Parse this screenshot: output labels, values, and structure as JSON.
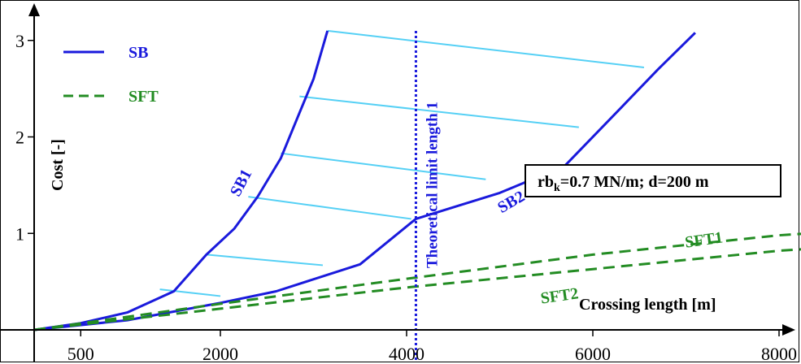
{
  "chart_data": {
    "type": "line",
    "xlabel": "Crossing length [m]",
    "ylabel": "Cost [-]",
    "xlim": [
      0,
      8000
    ],
    "ylim": [
      0,
      3.2
    ],
    "x_ticks": [
      "500",
      "2000",
      "4000",
      "6000",
      "8000"
    ],
    "x_tick_values": [
      500,
      2000,
      4000,
      6000,
      8000
    ],
    "y_ticks": [
      "1",
      "2",
      "3"
    ],
    "y_tick_values": [
      1,
      2,
      3
    ],
    "grid": false,
    "legend": {
      "placement": "top-left",
      "entries": [
        {
          "label": "SB",
          "style": "solid",
          "color": "#1a1adc"
        },
        {
          "label": "SFT",
          "style": "dashed",
          "color": "#238c23"
        }
      ]
    },
    "annotation_box": {
      "text_prefix": "rb",
      "text_sub": "k",
      "text_suffix": "=0.7 MN/m; d=200 m"
    },
    "vertical_line": {
      "x": 4100,
      "label": "Theoretical limit length 1",
      "color": "#1a1adc"
    },
    "series": [
      {
        "name": "SB1",
        "style": "solid",
        "color": "#1a1adc",
        "points": [
          [
            0,
            0
          ],
          [
            500,
            0.07
          ],
          [
            1000,
            0.18
          ],
          [
            1500,
            0.4
          ],
          [
            1850,
            0.78
          ],
          [
            2150,
            1.05
          ],
          [
            2400,
            1.38
          ],
          [
            2650,
            1.78
          ],
          [
            2850,
            2.25
          ],
          [
            3000,
            2.6
          ],
          [
            3150,
            3.1
          ]
        ]
      },
      {
        "name": "SB2",
        "style": "solid",
        "color": "#1a1adc",
        "points": [
          [
            0,
            0
          ],
          [
            1000,
            0.1
          ],
          [
            2000,
            0.28
          ],
          [
            2600,
            0.4
          ],
          [
            3500,
            0.68
          ],
          [
            4100,
            1.15
          ],
          [
            5000,
            1.42
          ],
          [
            5700,
            1.7
          ],
          [
            6300,
            2.3
          ],
          [
            6700,
            2.7
          ],
          [
            7100,
            3.08
          ]
        ]
      },
      {
        "name": "SFT1",
        "style": "dashed",
        "color": "#238c23",
        "points": [
          [
            0,
            0
          ],
          [
            2000,
            0.27
          ],
          [
            4000,
            0.53
          ],
          [
            6000,
            0.78
          ],
          [
            8000,
            0.98
          ],
          [
            8800,
            1.03
          ]
        ]
      },
      {
        "name": "SFT2",
        "style": "dashed",
        "color": "#238c23",
        "points": [
          [
            0,
            0
          ],
          [
            2000,
            0.22
          ],
          [
            4000,
            0.44
          ],
          [
            6000,
            0.63
          ],
          [
            8000,
            0.82
          ],
          [
            8800,
            0.87
          ]
        ]
      }
    ],
    "hatch_color": "#55d0f5",
    "hatch_lines": [
      [
        [
          3150,
          3.1
        ],
        [
          6550,
          2.72
        ]
      ],
      [
        [
          2850,
          2.42
        ],
        [
          5850,
          2.1
        ]
      ],
      [
        [
          2650,
          1.83
        ],
        [
          4850,
          1.56
        ]
      ],
      [
        [
          2300,
          1.38
        ],
        [
          4050,
          1.15
        ]
      ],
      [
        [
          1850,
          0.78
        ],
        [
          3100,
          0.67
        ]
      ],
      [
        [
          1350,
          0.42
        ],
        [
          2000,
          0.35
        ]
      ]
    ],
    "series_labels": [
      {
        "text": "SB1",
        "color": "#1a1adc",
        "x": 2270,
        "y": 1.5,
        "rotate": -62
      },
      {
        "text": "SB2",
        "color": "#1a1adc",
        "x": 5150,
        "y": 1.28,
        "rotate": -30
      },
      {
        "text": "SFT1",
        "color": "#238c23",
        "x": 7200,
        "y": 0.88,
        "rotate": -8
      },
      {
        "text": "SFT2",
        "color": "#238c23",
        "x": 5650,
        "y": 0.3,
        "rotate": -8
      }
    ]
  }
}
